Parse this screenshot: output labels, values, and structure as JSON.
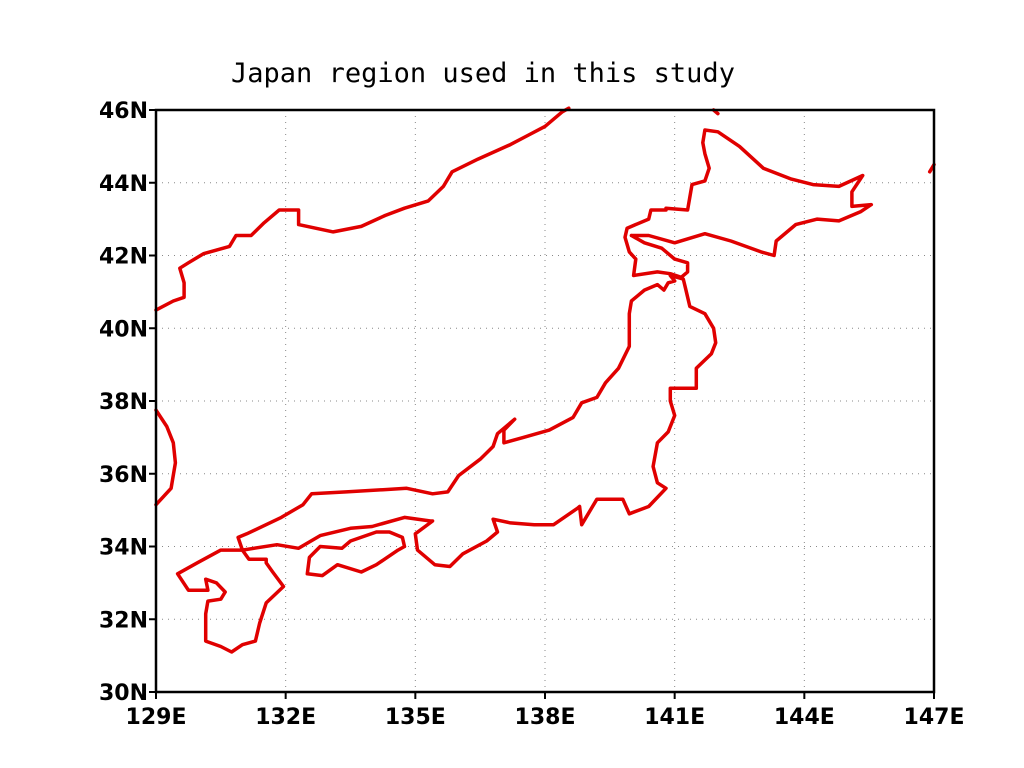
{
  "title": "Japan region used in this study",
  "colors": {
    "coastline": "#e00000",
    "frame": "#000000",
    "grid": "#888888"
  },
  "map": {
    "projection": "lat-lon",
    "lon_range": [
      129,
      147
    ],
    "lat_range": [
      30,
      46
    ],
    "grid": "dotted",
    "x_ticks": [
      {
        "value": 129,
        "label": "129E"
      },
      {
        "value": 132,
        "label": "132E"
      },
      {
        "value": 135,
        "label": "135E"
      },
      {
        "value": 138,
        "label": "138E"
      },
      {
        "value": 141,
        "label": "141E"
      },
      {
        "value": 144,
        "label": "144E"
      },
      {
        "value": 147,
        "label": "147E"
      }
    ],
    "y_ticks": [
      {
        "value": 30,
        "label": "30N"
      },
      {
        "value": 32,
        "label": "32N"
      },
      {
        "value": 34,
        "label": "34N"
      },
      {
        "value": 36,
        "label": "36N"
      },
      {
        "value": 38,
        "label": "38N"
      },
      {
        "value": 40,
        "label": "40N"
      },
      {
        "value": 42,
        "label": "42N"
      },
      {
        "value": 44,
        "label": "44N"
      },
      {
        "value": 46,
        "label": "46N"
      }
    ],
    "coastlines": [
      {
        "name": "asian-mainland",
        "points": [
          [
            129.0,
            40.5
          ],
          [
            129.4,
            40.75
          ],
          [
            129.65,
            40.85
          ],
          [
            129.65,
            41.25
          ],
          [
            129.55,
            41.65
          ],
          [
            129.75,
            41.8
          ],
          [
            130.1,
            42.05
          ],
          [
            130.7,
            42.25
          ],
          [
            130.85,
            42.55
          ],
          [
            131.2,
            42.55
          ],
          [
            131.5,
            42.9
          ],
          [
            131.85,
            43.25
          ],
          [
            132.3,
            43.25
          ],
          [
            132.3,
            42.85
          ],
          [
            133.1,
            42.65
          ],
          [
            133.75,
            42.8
          ],
          [
            134.3,
            43.1
          ],
          [
            134.75,
            43.3
          ],
          [
            135.3,
            43.5
          ],
          [
            135.65,
            43.9
          ],
          [
            135.85,
            44.3
          ],
          [
            136.45,
            44.65
          ],
          [
            137.2,
            45.05
          ],
          [
            137.6,
            45.3
          ],
          [
            138.0,
            45.55
          ],
          [
            138.4,
            45.95
          ],
          [
            138.55,
            46.05
          ]
        ]
      },
      {
        "name": "korea-east-coast",
        "points": [
          [
            129.0,
            37.75
          ],
          [
            129.25,
            37.3
          ],
          [
            129.4,
            36.85
          ],
          [
            129.45,
            36.3
          ],
          [
            129.35,
            35.6
          ],
          [
            129.0,
            35.15
          ]
        ]
      },
      {
        "name": "sakhalin-tip",
        "points": [
          [
            141.9,
            46.0
          ],
          [
            142.0,
            45.9
          ]
        ]
      },
      {
        "name": "kuril-fragment",
        "points": [
          [
            146.9,
            44.3
          ],
          [
            147.0,
            44.5
          ]
        ]
      },
      {
        "name": "hokkaido",
        "points": [
          [
            140.0,
            42.55
          ],
          [
            140.4,
            42.55
          ],
          [
            141.0,
            42.35
          ],
          [
            141.7,
            42.6
          ],
          [
            142.3,
            42.4
          ],
          [
            143.0,
            42.1
          ],
          [
            143.3,
            42.0
          ],
          [
            143.35,
            42.4
          ],
          [
            143.8,
            42.85
          ],
          [
            144.3,
            43.0
          ],
          [
            144.8,
            42.95
          ],
          [
            145.3,
            43.2
          ],
          [
            145.55,
            43.4
          ],
          [
            145.1,
            43.35
          ],
          [
            145.1,
            43.75
          ],
          [
            145.35,
            44.2
          ],
          [
            144.8,
            43.9
          ],
          [
            144.2,
            43.95
          ],
          [
            143.7,
            44.1
          ],
          [
            143.05,
            44.4
          ],
          [
            142.5,
            45.0
          ],
          [
            142.0,
            45.4
          ],
          [
            141.7,
            45.45
          ],
          [
            141.65,
            45.1
          ],
          [
            141.7,
            44.8
          ],
          [
            141.8,
            44.4
          ],
          [
            141.7,
            44.05
          ],
          [
            141.4,
            43.95
          ],
          [
            141.35,
            43.6
          ],
          [
            141.3,
            43.25
          ],
          [
            140.8,
            43.3
          ],
          [
            140.8,
            43.25
          ],
          [
            140.45,
            43.25
          ],
          [
            140.4,
            43.0
          ],
          [
            139.9,
            42.75
          ],
          [
            139.85,
            42.5
          ],
          [
            139.95,
            42.1
          ],
          [
            140.1,
            41.9
          ],
          [
            140.05,
            41.45
          ],
          [
            140.6,
            41.55
          ],
          [
            140.9,
            41.5
          ],
          [
            141.15,
            41.4
          ],
          [
            141.3,
            41.55
          ],
          [
            141.3,
            41.8
          ],
          [
            141.0,
            41.9
          ],
          [
            140.7,
            42.2
          ],
          [
            140.3,
            42.35
          ],
          [
            140.0,
            42.55
          ]
        ]
      },
      {
        "name": "honshu",
        "points": [
          [
            140.9,
            41.45
          ],
          [
            141.0,
            41.3
          ],
          [
            140.85,
            41.25
          ],
          [
            140.75,
            41.05
          ],
          [
            140.6,
            41.2
          ],
          [
            140.3,
            41.05
          ],
          [
            140.0,
            40.75
          ],
          [
            139.95,
            40.4
          ],
          [
            139.95,
            39.5
          ],
          [
            139.7,
            38.9
          ],
          [
            139.4,
            38.5
          ],
          [
            139.2,
            38.1
          ],
          [
            138.85,
            37.95
          ],
          [
            138.65,
            37.55
          ],
          [
            138.1,
            37.2
          ],
          [
            137.5,
            37.0
          ],
          [
            137.05,
            36.85
          ],
          [
            137.05,
            37.2
          ],
          [
            137.3,
            37.5
          ],
          [
            136.9,
            37.1
          ],
          [
            136.8,
            36.75
          ],
          [
            136.5,
            36.4
          ],
          [
            136.0,
            35.95
          ],
          [
            135.75,
            35.5
          ],
          [
            135.4,
            35.45
          ],
          [
            134.8,
            35.6
          ],
          [
            133.4,
            35.5
          ],
          [
            132.6,
            35.45
          ],
          [
            132.4,
            35.15
          ],
          [
            131.9,
            34.8
          ],
          [
            131.1,
            34.35
          ],
          [
            130.9,
            34.25
          ],
          [
            131.0,
            33.9
          ],
          [
            131.8,
            34.05
          ],
          [
            132.3,
            33.95
          ],
          [
            132.8,
            34.3
          ],
          [
            133.5,
            34.5
          ],
          [
            134.0,
            34.55
          ],
          [
            134.75,
            34.8
          ],
          [
            135.35,
            34.7
          ],
          [
            135.4,
            34.7
          ],
          [
            135.0,
            34.35
          ],
          [
            135.05,
            33.9
          ],
          [
            135.45,
            33.5
          ],
          [
            135.8,
            33.45
          ],
          [
            136.1,
            33.8
          ],
          [
            136.65,
            34.15
          ],
          [
            136.9,
            34.4
          ],
          [
            136.8,
            34.75
          ],
          [
            137.2,
            34.65
          ],
          [
            137.75,
            34.6
          ],
          [
            138.2,
            34.6
          ],
          [
            138.75,
            35.05
          ],
          [
            138.8,
            35.1
          ],
          [
            138.85,
            34.6
          ],
          [
            139.2,
            35.3
          ],
          [
            139.8,
            35.3
          ],
          [
            139.95,
            34.9
          ],
          [
            140.4,
            35.1
          ],
          [
            140.8,
            35.6
          ],
          [
            140.6,
            35.75
          ],
          [
            140.5,
            36.2
          ],
          [
            140.6,
            36.85
          ],
          [
            140.85,
            37.15
          ],
          [
            141.0,
            37.6
          ],
          [
            140.9,
            38.0
          ],
          [
            140.9,
            38.35
          ],
          [
            141.5,
            38.35
          ],
          [
            141.5,
            38.9
          ],
          [
            141.85,
            39.3
          ],
          [
            141.95,
            39.6
          ],
          [
            141.9,
            40.0
          ],
          [
            141.7,
            40.4
          ],
          [
            141.35,
            40.6
          ],
          [
            141.25,
            41.1
          ],
          [
            141.2,
            41.35
          ],
          [
            140.9,
            41.45
          ]
        ]
      },
      {
        "name": "kyushu",
        "points": [
          [
            131.0,
            33.9
          ],
          [
            130.5,
            33.9
          ],
          [
            129.95,
            33.55
          ],
          [
            129.5,
            33.25
          ],
          [
            129.75,
            32.8
          ],
          [
            130.2,
            32.8
          ],
          [
            130.15,
            33.1
          ],
          [
            130.4,
            33.0
          ],
          [
            130.6,
            32.75
          ],
          [
            130.5,
            32.55
          ],
          [
            130.2,
            32.5
          ],
          [
            130.15,
            32.15
          ],
          [
            130.15,
            31.4
          ],
          [
            130.5,
            31.25
          ],
          [
            130.75,
            31.1
          ],
          [
            131.0,
            31.3
          ],
          [
            131.3,
            31.4
          ],
          [
            131.4,
            31.9
          ],
          [
            131.55,
            32.45
          ],
          [
            131.95,
            32.9
          ],
          [
            131.7,
            33.3
          ],
          [
            131.55,
            33.55
          ],
          [
            131.55,
            33.65
          ],
          [
            131.15,
            33.65
          ],
          [
            131.0,
            33.9
          ]
        ]
      },
      {
        "name": "shikoku",
        "points": [
          [
            134.75,
            34.0
          ],
          [
            134.6,
            33.9
          ],
          [
            134.1,
            33.5
          ],
          [
            133.75,
            33.3
          ],
          [
            133.2,
            33.5
          ],
          [
            132.85,
            33.2
          ],
          [
            132.5,
            33.25
          ],
          [
            132.55,
            33.7
          ],
          [
            132.8,
            34.0
          ],
          [
            133.3,
            33.95
          ],
          [
            133.5,
            34.15
          ],
          [
            134.1,
            34.4
          ],
          [
            134.4,
            34.4
          ],
          [
            134.7,
            34.25
          ],
          [
            134.75,
            34.0
          ]
        ]
      }
    ]
  }
}
